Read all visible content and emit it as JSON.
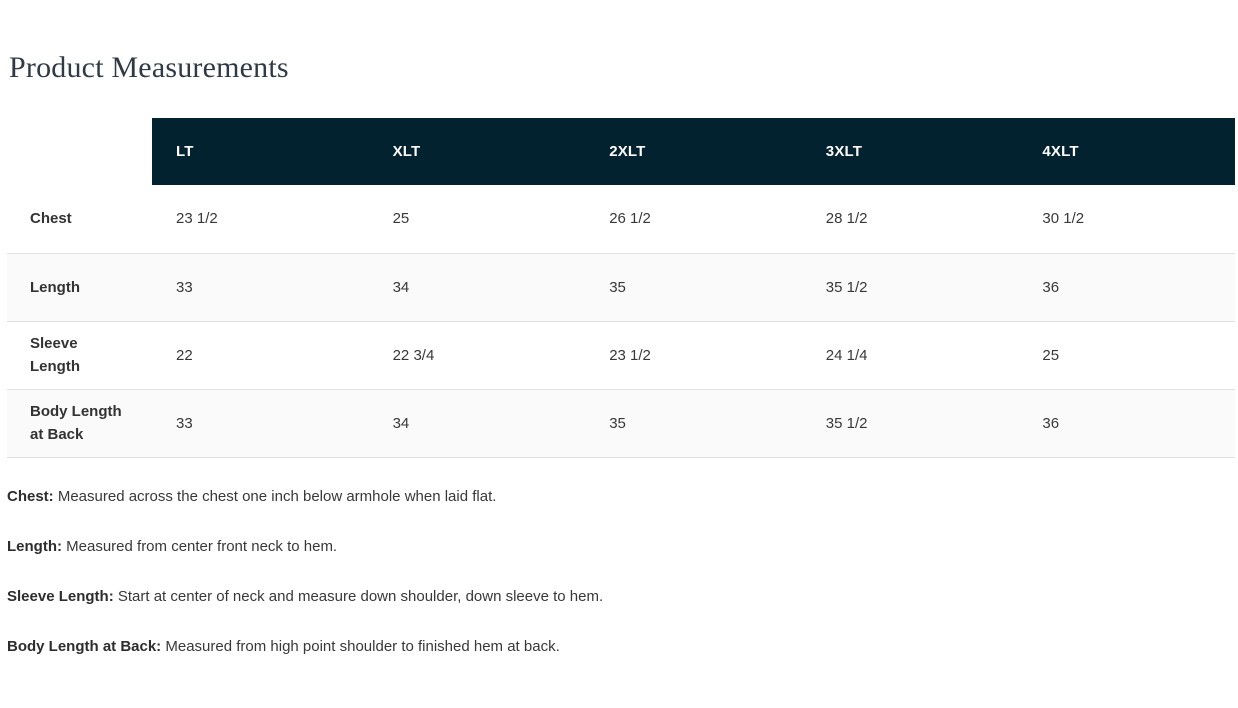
{
  "page": {
    "title": "Product Measurements"
  },
  "colors": {
    "header_bg": "#03222f",
    "title_text": "#2f3a44",
    "body_text": "#333333",
    "row_stripe": "#fafafa",
    "row_border": "#e1e1e1"
  },
  "table": {
    "columns": [
      "LT",
      "XLT",
      "2XLT",
      "3XLT",
      "4XLT"
    ],
    "rows": [
      {
        "label": "Chest",
        "values": [
          "23 1/2",
          "25",
          "26 1/2",
          "28 1/2",
          "30 1/2"
        ]
      },
      {
        "label": "Length",
        "values": [
          "33",
          "34",
          "35",
          "35 1/2",
          "36"
        ]
      },
      {
        "label": "Sleeve Length",
        "values": [
          "22",
          "22 3/4",
          "23 1/2",
          "24 1/4",
          "25"
        ]
      },
      {
        "label": "Body Length at Back",
        "values": [
          "33",
          "34",
          "35",
          "35 1/2",
          "36"
        ]
      }
    ]
  },
  "footnotes": [
    {
      "term": "Chest:",
      "description": "Measured across the chest one inch below armhole when laid flat."
    },
    {
      "term": "Length:",
      "description": "Measured from center front neck to hem."
    },
    {
      "term": "Sleeve Length:",
      "description": "Start at center of neck and measure down shoulder, down sleeve to hem."
    },
    {
      "term": "Body Length at Back:",
      "description": "Measured from high point shoulder to finished hem at back."
    }
  ]
}
